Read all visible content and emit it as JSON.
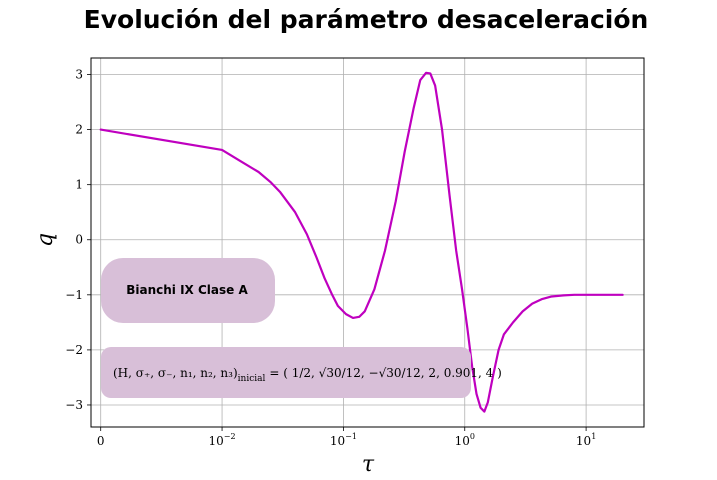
{
  "chart_data": {
    "type": "line",
    "title": "Evolución del parámetro desaceleración",
    "xlabel": "τ",
    "ylabel": "q",
    "xscale": "symlog",
    "xlim": [
      -0.0008,
      30
    ],
    "ylim": [
      -3.4,
      3.3
    ],
    "grid": true,
    "x_ticks": [
      {
        "value": 0,
        "base": "0",
        "exp": ""
      },
      {
        "value": 0.01,
        "base": "10",
        "exp": "−2"
      },
      {
        "value": 0.1,
        "base": "10",
        "exp": "−1"
      },
      {
        "value": 1,
        "base": "10",
        "exp": "0"
      },
      {
        "value": 10,
        "base": "10",
        "exp": "1"
      }
    ],
    "y_ticks": [
      {
        "value": 3,
        "label": "3"
      },
      {
        "value": 2,
        "label": "2"
      },
      {
        "value": 1,
        "label": "1"
      },
      {
        "value": 0,
        "label": "0"
      },
      {
        "value": -1,
        "label": "−1"
      },
      {
        "value": -2,
        "label": "−2"
      },
      {
        "value": -3,
        "label": "−3"
      }
    ],
    "series": [
      {
        "color": "#bf00bf",
        "points": [
          [
            0,
            2.0
          ],
          [
            0.01,
            1.63
          ],
          [
            0.0141,
            1.43
          ],
          [
            0.02,
            1.23
          ],
          [
            0.025,
            1.05
          ],
          [
            0.03,
            0.87
          ],
          [
            0.04,
            0.5
          ],
          [
            0.05,
            0.1
          ],
          [
            0.06,
            -0.32
          ],
          [
            0.07,
            -0.7
          ],
          [
            0.08,
            -0.98
          ],
          [
            0.09,
            -1.2
          ],
          [
            0.105,
            -1.35
          ],
          [
            0.12,
            -1.42
          ],
          [
            0.135,
            -1.4
          ],
          [
            0.15,
            -1.3
          ],
          [
            0.18,
            -0.9
          ],
          [
            0.22,
            -0.2
          ],
          [
            0.27,
            0.7
          ],
          [
            0.32,
            1.6
          ],
          [
            0.38,
            2.4
          ],
          [
            0.43,
            2.9
          ],
          [
            0.48,
            3.03
          ],
          [
            0.52,
            3.02
          ],
          [
            0.57,
            2.8
          ],
          [
            0.65,
            2.0
          ],
          [
            0.75,
            0.8
          ],
          [
            0.85,
            -0.2
          ],
          [
            0.95,
            -0.9
          ],
          [
            1.05,
            -1.6
          ],
          [
            1.15,
            -2.3
          ],
          [
            1.25,
            -2.8
          ],
          [
            1.35,
            -3.05
          ],
          [
            1.45,
            -3.12
          ],
          [
            1.55,
            -2.95
          ],
          [
            1.7,
            -2.5
          ],
          [
            1.9,
            -2.0
          ],
          [
            2.1,
            -1.72
          ],
          [
            2.5,
            -1.5
          ],
          [
            3.0,
            -1.3
          ],
          [
            3.6,
            -1.16
          ],
          [
            4.3,
            -1.08
          ],
          [
            5.2,
            -1.03
          ],
          [
            6.5,
            -1.01
          ],
          [
            8.0,
            -1.0
          ],
          [
            12.0,
            -1.0
          ],
          [
            20.0,
            -1.0
          ]
        ]
      }
    ],
    "annotations": [
      {
        "text": "Bianchi IX Clase A",
        "style": "bold"
      },
      {
        "lhs": "(H, σ₊, σ₋, n₁, n₂, n₃)",
        "sub": "inicial",
        "rhs": "= ( 1/2, √30/12, −√30/12, 2, 0.901, 4 )"
      }
    ],
    "annotation_box_color": "#d8bfd8",
    "grid_color": "#b0b0b0"
  }
}
